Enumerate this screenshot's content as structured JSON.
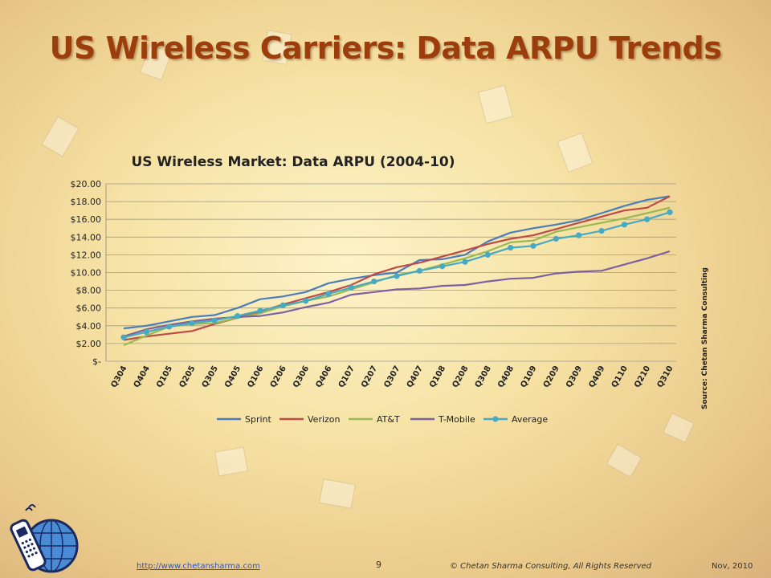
{
  "slide": {
    "title": "US Wireless Carriers: Data ARPU Trends",
    "source_note": "Source: Chetan Sharma Consulting",
    "footer_link": "http://www.chetansharma.com",
    "page_number": "9",
    "copyright": "© Chetan Sharma Consulting, All Rights Reserved",
    "date": "Nov, 2010"
  },
  "chart_data": {
    "type": "line",
    "title": "US Wireless Market: Data ARPU (2004-10)",
    "xlabel": "",
    "ylabel": "",
    "ylim": [
      0,
      20
    ],
    "y_ticks": [
      "$-",
      "$2.00",
      "$4.00",
      "$6.00",
      "$8.00",
      "$10.00",
      "$12.00",
      "$14.00",
      "$16.00",
      "$18.00",
      "$20.00"
    ],
    "grid": true,
    "legend": "bottom",
    "categories": [
      "Q304",
      "Q404",
      "Q105",
      "Q205",
      "Q305",
      "Q405",
      "Q106",
      "Q206",
      "Q306",
      "Q406",
      "Q107",
      "Q207",
      "Q307",
      "Q407",
      "Q108",
      "Q208",
      "Q308",
      "Q408",
      "Q109",
      "Q209",
      "Q309",
      "Q409",
      "Q110",
      "Q210",
      "Q310"
    ],
    "series": [
      {
        "name": "Sprint",
        "color": "#4a7ebb",
        "marker": false,
        "values": [
          3.7,
          4.0,
          4.5,
          5.0,
          5.2,
          6.0,
          7.0,
          7.3,
          7.8,
          8.8,
          9.3,
          9.7,
          10.0,
          11.4,
          11.5,
          12.0,
          13.5,
          14.5,
          15.0,
          15.4,
          15.9,
          16.7,
          17.5,
          18.2,
          18.6
        ]
      },
      {
        "name": "Verizon",
        "color": "#be4b48",
        "marker": false,
        "values": [
          2.4,
          2.8,
          3.1,
          3.4,
          4.2,
          4.9,
          5.6,
          6.4,
          7.1,
          7.8,
          8.6,
          9.8,
          10.6,
          11.1,
          11.8,
          12.5,
          13.2,
          13.8,
          14.2,
          14.9,
          15.6,
          16.3,
          17.0,
          17.3,
          18.6
        ]
      },
      {
        "name": "AT&T",
        "color": "#98b954",
        "marker": false,
        "values": [
          1.8,
          2.9,
          3.9,
          4.2,
          4.3,
          4.9,
          5.4,
          6.2,
          6.8,
          7.3,
          8.1,
          8.9,
          9.7,
          10.2,
          10.9,
          11.6,
          12.4,
          13.4,
          13.6,
          14.6,
          15.1,
          15.6,
          16.1,
          16.7,
          17.3
        ]
      },
      {
        "name": "T-Mobile",
        "color": "#7d60a0",
        "marker": false,
        "values": [
          2.8,
          3.6,
          4.1,
          4.5,
          4.8,
          5.0,
          5.1,
          5.5,
          6.1,
          6.6,
          7.5,
          7.8,
          8.1,
          8.2,
          8.5,
          8.6,
          9.0,
          9.3,
          9.4,
          9.9,
          10.1,
          10.2,
          10.9,
          11.6,
          12.4
        ]
      },
      {
        "name": "Average",
        "color": "#46aac5",
        "marker": true,
        "values": [
          2.7,
          3.3,
          3.9,
          4.3,
          4.6,
          5.1,
          5.7,
          6.3,
          6.8,
          7.6,
          8.3,
          9.0,
          9.6,
          10.2,
          10.7,
          11.2,
          12.0,
          12.8,
          13.0,
          13.8,
          14.2,
          14.7,
          15.4,
          16.0,
          16.8
        ]
      }
    ]
  }
}
